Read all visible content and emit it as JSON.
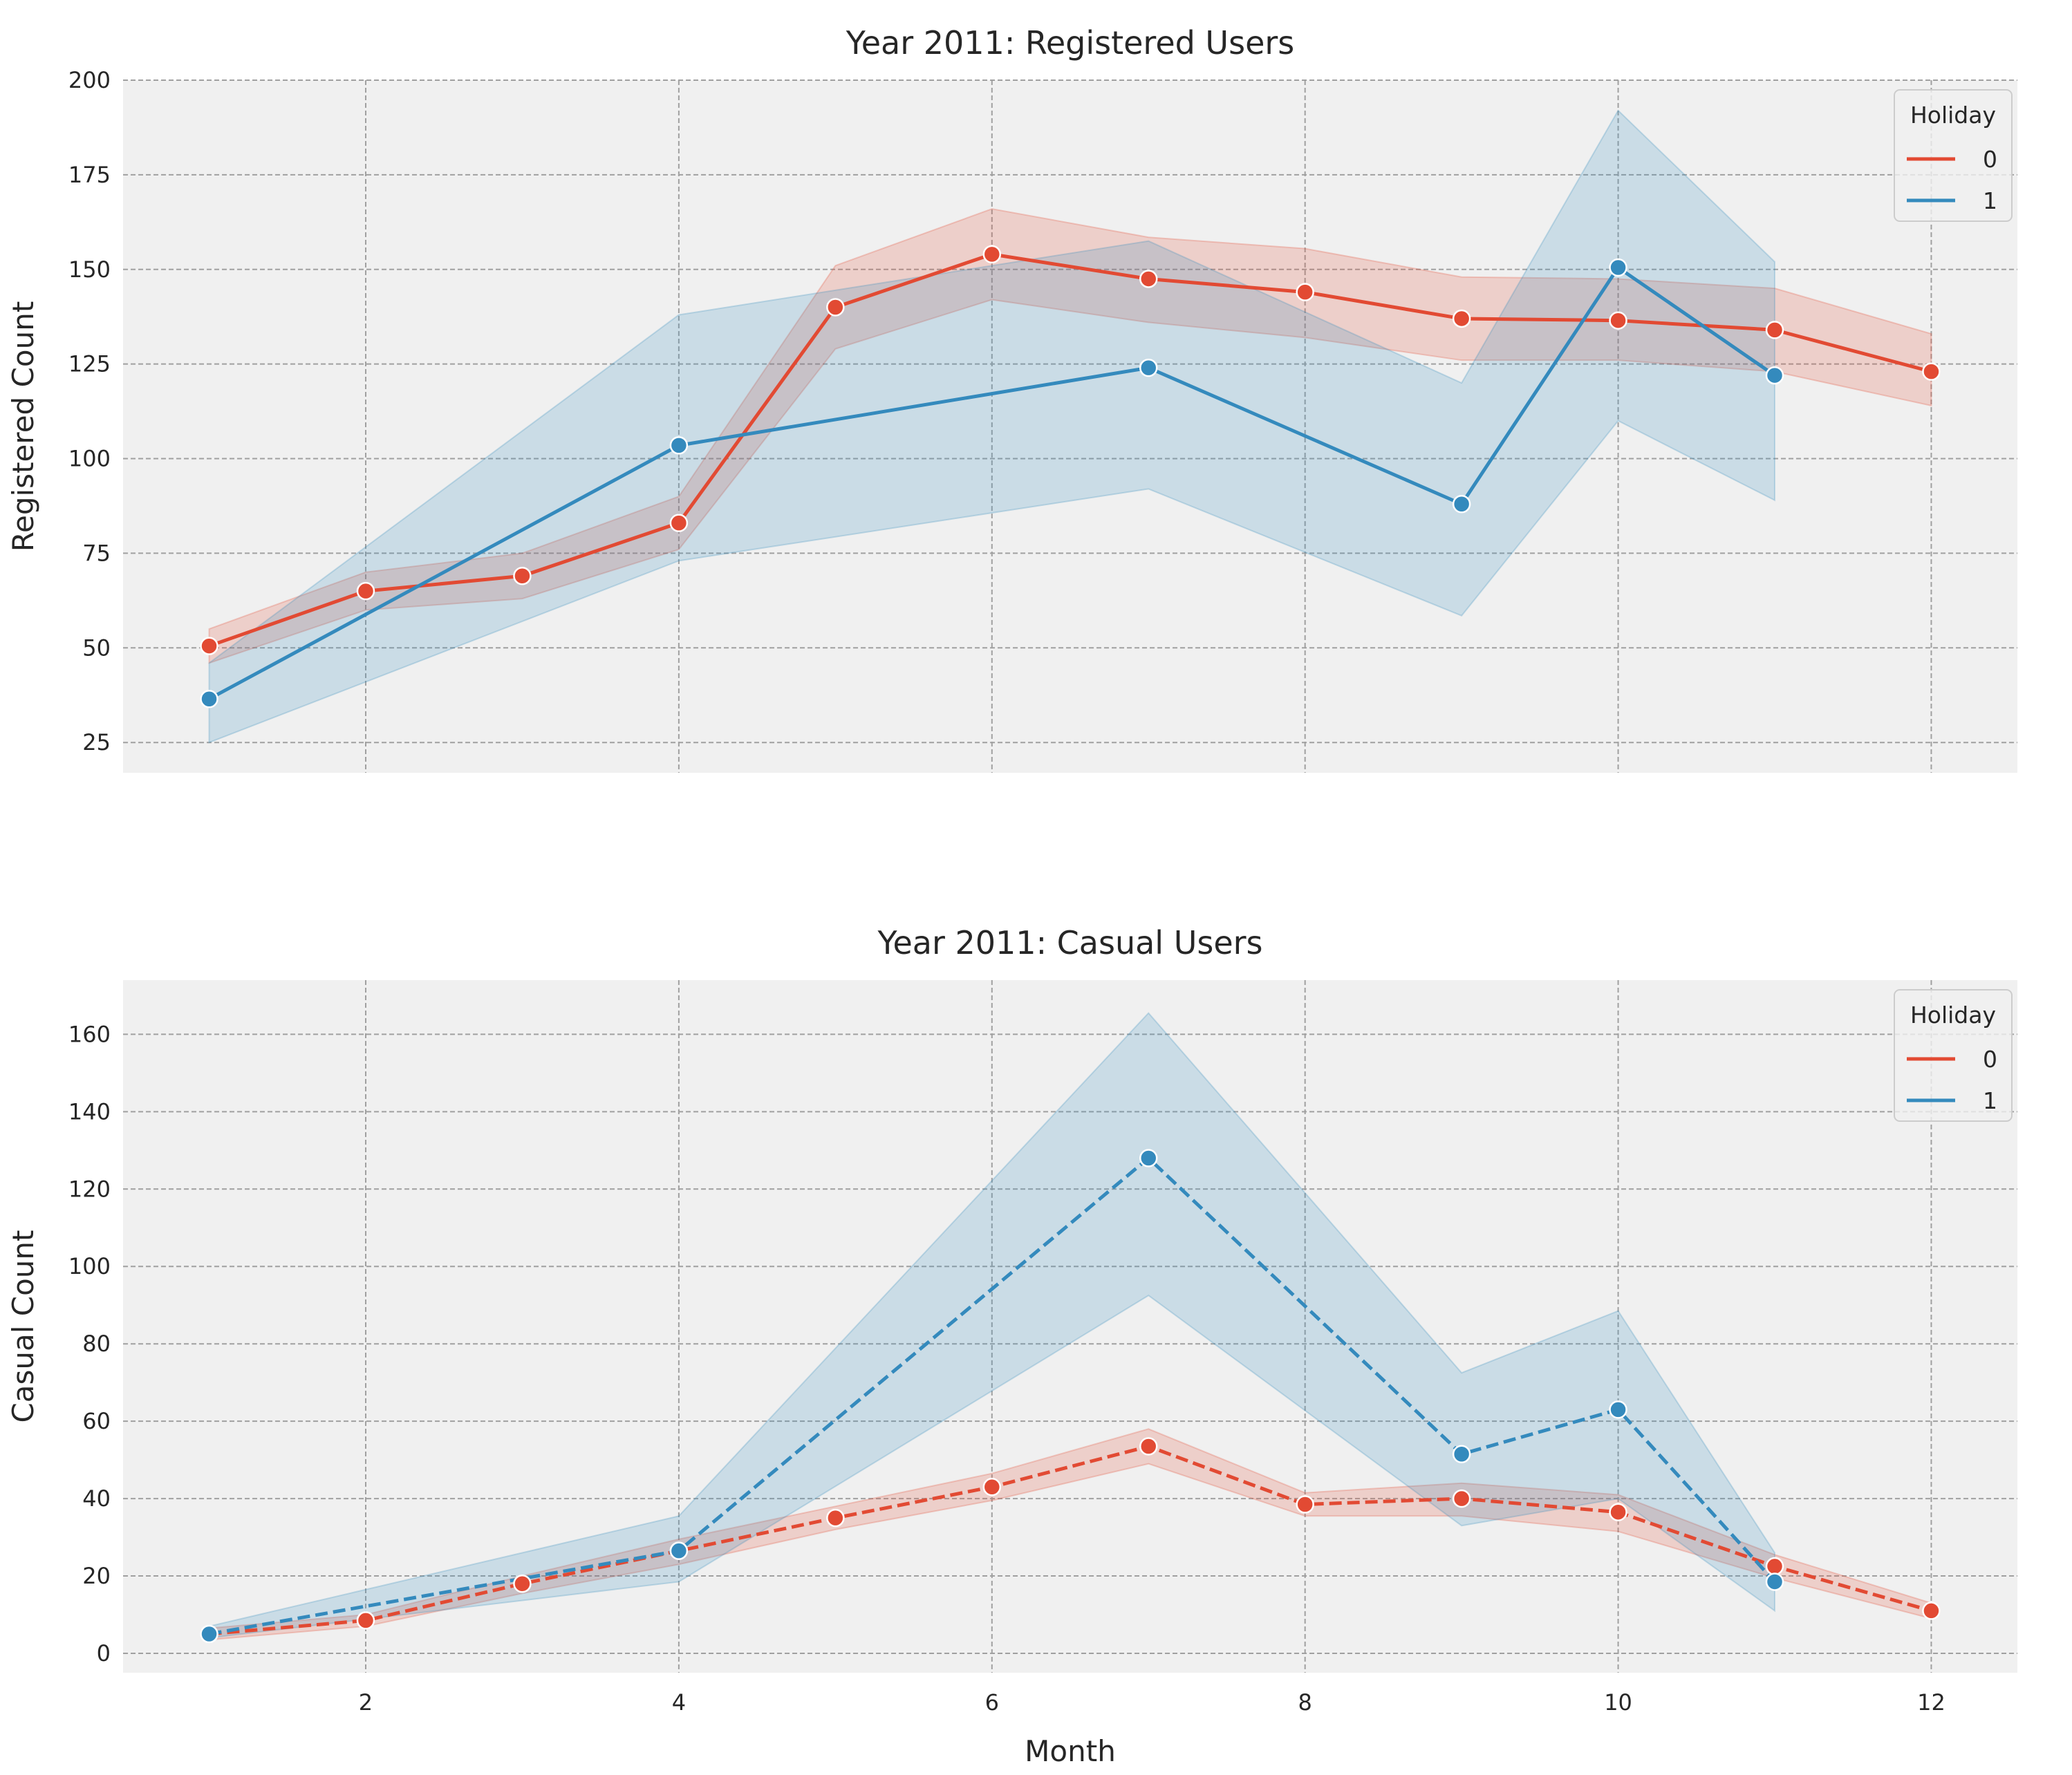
{
  "colors": {
    "holiday_0": "#E24A33",
    "holiday_1": "#348ABD",
    "panel_bg": "#F0F0F0",
    "grid": "#A0A0A0"
  },
  "chart_data": [
    {
      "type": "line",
      "title": "Year 2011: Registered Users",
      "xlabel": "",
      "ylabel": "Registered Count",
      "xlim": [
        0.45,
        12.55
      ],
      "ylim": [
        17,
        200
      ],
      "xticks": [
        2,
        4,
        6,
        8,
        10,
        12
      ],
      "yticks": [
        25,
        50,
        75,
        100,
        125,
        150,
        175,
        200
      ],
      "grid": true,
      "line_style": "solid",
      "legend": {
        "title": "Holiday",
        "placement": "top-right"
      },
      "series": [
        {
          "name": "0",
          "color": "#E24A33",
          "x": [
            1,
            2,
            3,
            4,
            5,
            6,
            7,
            8,
            9,
            10,
            11,
            12
          ],
          "y": [
            50.5,
            65,
            69,
            83,
            140,
            154,
            147.5,
            144,
            137,
            136.5,
            134,
            123
          ],
          "ci_low": [
            46,
            60,
            63,
            76,
            129,
            142,
            136,
            132,
            126,
            126,
            123,
            114
          ],
          "ci_high": [
            55,
            70,
            75,
            90,
            151,
            166,
            158.5,
            155.5,
            148,
            147.5,
            145,
            133
          ]
        },
        {
          "name": "1",
          "color": "#348ABD",
          "x": [
            1,
            4,
            7,
            9,
            10,
            11
          ],
          "y": [
            36.5,
            103.5,
            124,
            88,
            150.5,
            122
          ],
          "ci_low": [
            25,
            73,
            92,
            58.5,
            110,
            89
          ],
          "ci_high": [
            46,
            138,
            157.5,
            120,
            192,
            152
          ]
        }
      ]
    },
    {
      "type": "line",
      "title": "Year 2011: Casual Users",
      "xlabel": "Month",
      "ylabel": "Casual Count",
      "xlim": [
        0.45,
        12.55
      ],
      "ylim": [
        -5,
        174
      ],
      "xticks": [
        2,
        4,
        6,
        8,
        10,
        12
      ],
      "yticks": [
        0,
        20,
        40,
        60,
        80,
        100,
        120,
        140,
        160
      ],
      "grid": true,
      "line_style": "dashed",
      "legend": {
        "title": "Holiday",
        "placement": "top-right"
      },
      "series": [
        {
          "name": "0",
          "color": "#E24A33",
          "x": [
            1,
            2,
            3,
            4,
            5,
            6,
            7,
            8,
            9,
            10,
            11,
            12
          ],
          "y": [
            5,
            8.5,
            18,
            26.5,
            35,
            43,
            53.5,
            38.5,
            40,
            36.5,
            22.5,
            11
          ],
          "ci_low": [
            3.5,
            7,
            15.5,
            23,
            32,
            39.5,
            49,
            35.5,
            35.5,
            31.5,
            19.5,
            9
          ],
          "ci_high": [
            6.5,
            10,
            20,
            29.5,
            38,
            46.5,
            58,
            41.5,
            44,
            41,
            25.5,
            13
          ]
        },
        {
          "name": "1",
          "color": "#348ABD",
          "x": [
            1,
            4,
            7,
            9,
            10,
            11
          ],
          "y": [
            5,
            26.5,
            128,
            51.5,
            63,
            18.5
          ],
          "ci_low": [
            4,
            18.5,
            92.5,
            33,
            40,
            11
          ],
          "ci_high": [
            7,
            35.5,
            165.5,
            72.5,
            88.5,
            26
          ]
        }
      ]
    }
  ]
}
